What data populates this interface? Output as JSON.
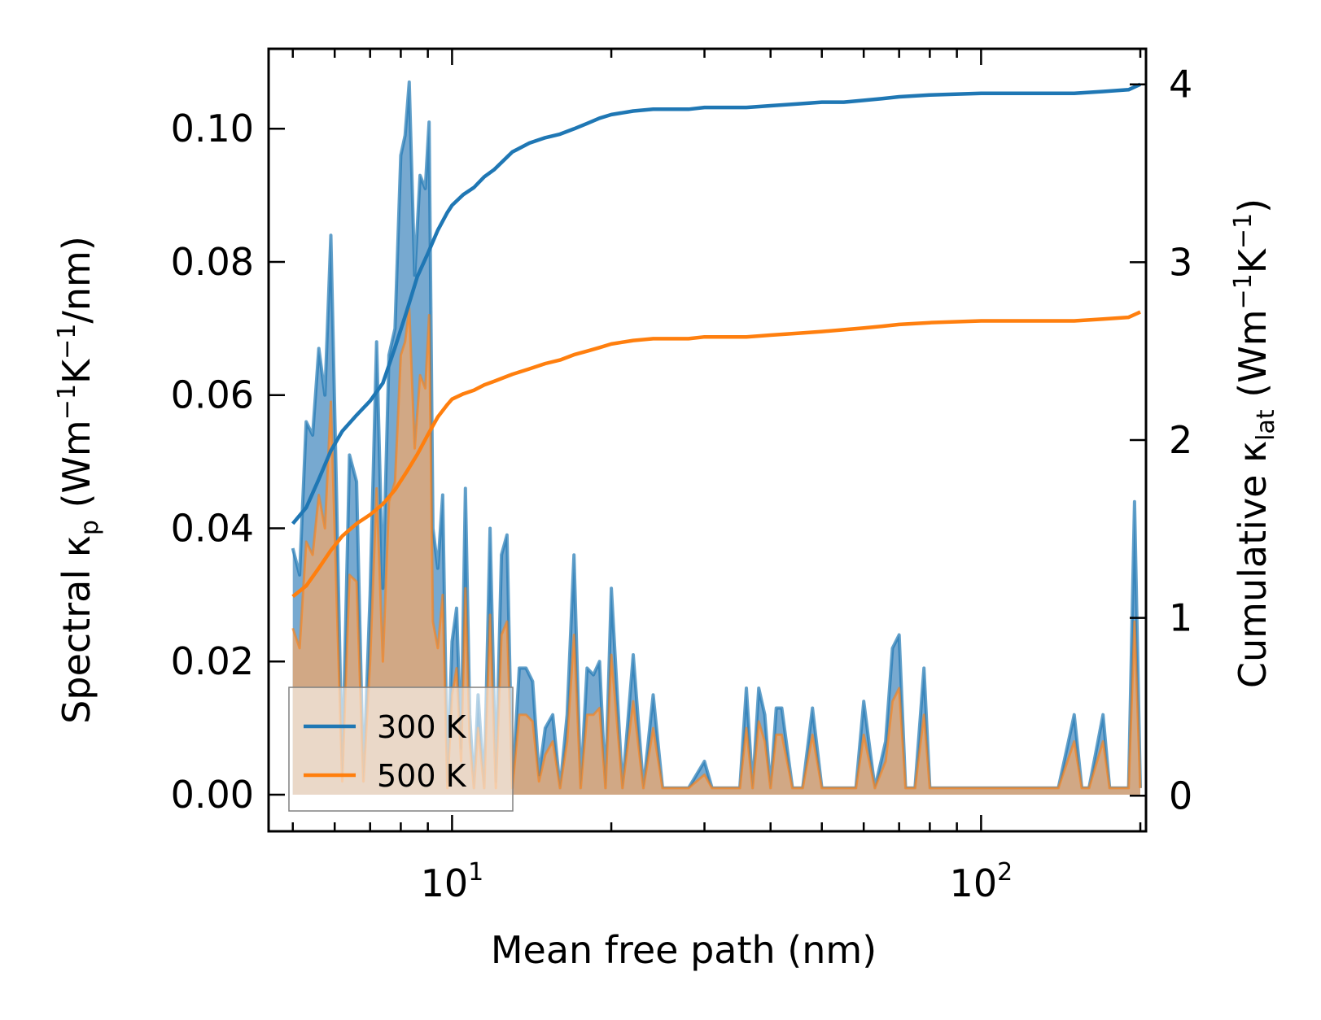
{
  "chart_data": {
    "type": "line",
    "xscale": "log",
    "xlim": [
      4.5,
      205
    ],
    "ylim_left": [
      -0.0055,
      0.112
    ],
    "ylim_right": [
      -0.2,
      4.2
    ],
    "xlabel": "Mean free path (nm)",
    "ylabel_left": {
      "prefix": "Spectral κ",
      "sub": "p",
      "open": " (Wm",
      "sup1": "−1",
      "mid": "K",
      "sup2": "−1",
      "close": "/nm)"
    },
    "ylabel_right": {
      "prefix": "Cumulative κ",
      "sub": "lat",
      "open": " (Wm",
      "sup1": "−1",
      "mid": "K",
      "sup2": "−1",
      "close": ")"
    },
    "x_major_ticks": [
      {
        "value": 10,
        "base": "10",
        "exp": "1"
      },
      {
        "value": 100,
        "base": "10",
        "exp": "2"
      }
    ],
    "y_left_ticks": [
      {
        "value": 0.0,
        "label": "0.00"
      },
      {
        "value": 0.02,
        "label": "0.02"
      },
      {
        "value": 0.04,
        "label": "0.04"
      },
      {
        "value": 0.06,
        "label": "0.06"
      },
      {
        "value": 0.08,
        "label": "0.08"
      },
      {
        "value": 0.1,
        "label": "0.10"
      }
    ],
    "y_right_ticks": [
      {
        "value": 0,
        "label": "0"
      },
      {
        "value": 1,
        "label": "1"
      },
      {
        "value": 2,
        "label": "2"
      },
      {
        "value": 3,
        "label": "3"
      },
      {
        "value": 4,
        "label": "4"
      }
    ],
    "legend": {
      "position": "lower-left",
      "entries": [
        {
          "label": "300 K",
          "color": "#1f77b4"
        },
        {
          "label": "500 K",
          "color": "#ff7f0e"
        }
      ]
    },
    "colors": {
      "s300_line": "#1f77b4",
      "s300_fill": "#5f9ac8",
      "s500_line": "#ff7f0e",
      "s500_fill": "#e0a878"
    },
    "spectral_300K": {
      "x": [
        5.0,
        5.15,
        5.3,
        5.45,
        5.6,
        5.75,
        5.9,
        6.05,
        6.2,
        6.4,
        6.6,
        6.8,
        7.0,
        7.2,
        7.4,
        7.6,
        7.8,
        8.0,
        8.15,
        8.3,
        8.5,
        8.7,
        8.9,
        9.05,
        9.2,
        9.4,
        9.6,
        9.8,
        10.0,
        10.2,
        10.4,
        10.6,
        10.8,
        11.0,
        11.2,
        11.5,
        11.8,
        12.1,
        12.4,
        12.7,
        13.0,
        13.4,
        13.8,
        14.2,
        14.6,
        15.0,
        15.5,
        16.0,
        16.5,
        17.0,
        17.5,
        18.0,
        18.5,
        19.0,
        19.5,
        20.0,
        21.0,
        22.0,
        23.0,
        24.0,
        25.0,
        26.0,
        28.0,
        30.0,
        31.0,
        33.0,
        35.0,
        36.0,
        37.0,
        38.0,
        39.0,
        40.0,
        41.0,
        42.0,
        44.0,
        46.0,
        48.0,
        50.0,
        52.0,
        54.0,
        56.0,
        58.0,
        60.0,
        63.0,
        66.0,
        68.0,
        70.0,
        72.0,
        75.0,
        78.0,
        80.0,
        85.0,
        90.0,
        100.0,
        120.0,
        140.0,
        150.0,
        155.0,
        160.0,
        170.0,
        175.0,
        180.0,
        190.0,
        195.0,
        200.0
      ],
      "y": [
        0.037,
        0.033,
        0.056,
        0.054,
        0.067,
        0.06,
        0.084,
        0.045,
        0.003,
        0.051,
        0.047,
        0.002,
        0.03,
        0.068,
        0.031,
        0.066,
        0.07,
        0.096,
        0.099,
        0.107,
        0.078,
        0.093,
        0.091,
        0.101,
        0.04,
        0.034,
        0.045,
        0.002,
        0.023,
        0.028,
        0.007,
        0.046,
        0.012,
        0.001,
        0.015,
        0.001,
        0.04,
        0.002,
        0.036,
        0.039,
        0.001,
        0.019,
        0.019,
        0.017,
        0.003,
        0.01,
        0.012,
        0.001,
        0.012,
        0.036,
        0.001,
        0.019,
        0.018,
        0.02,
        0.001,
        0.031,
        0.001,
        0.021,
        0.001,
        0.015,
        0.001,
        0.001,
        0.001,
        0.005,
        0.001,
        0.001,
        0.001,
        0.016,
        0.001,
        0.016,
        0.012,
        0.001,
        0.013,
        0.013,
        0.001,
        0.001,
        0.013,
        0.001,
        0.001,
        0.001,
        0.001,
        0.001,
        0.014,
        0.001,
        0.008,
        0.022,
        0.024,
        0.001,
        0.001,
        0.019,
        0.001,
        0.001,
        0.001,
        0.001,
        0.001,
        0.001,
        0.012,
        0.001,
        0.001,
        0.012,
        0.001,
        0.001,
        0.001,
        0.044,
        0.001
      ]
    },
    "spectral_500K": {
      "x": [
        5.0,
        5.15,
        5.3,
        5.45,
        5.6,
        5.75,
        5.9,
        6.05,
        6.2,
        6.4,
        6.6,
        6.8,
        7.0,
        7.2,
        7.4,
        7.6,
        7.8,
        8.0,
        8.15,
        8.3,
        8.5,
        8.7,
        8.9,
        9.05,
        9.2,
        9.4,
        9.6,
        9.8,
        10.0,
        10.2,
        10.4,
        10.6,
        10.8,
        11.0,
        11.2,
        11.5,
        11.8,
        12.1,
        12.4,
        12.7,
        13.0,
        13.4,
        13.8,
        14.2,
        14.6,
        15.0,
        15.5,
        16.0,
        16.5,
        17.0,
        17.5,
        18.0,
        18.5,
        19.0,
        19.5,
        20.0,
        21.0,
        22.0,
        23.0,
        24.0,
        25.0,
        26.0,
        28.0,
        30.0,
        31.0,
        33.0,
        35.0,
        36.0,
        37.0,
        38.0,
        39.0,
        40.0,
        41.0,
        42.0,
        44.0,
        46.0,
        48.0,
        50.0,
        52.0,
        54.0,
        56.0,
        58.0,
        60.0,
        63.0,
        66.0,
        68.0,
        70.0,
        72.0,
        75.0,
        78.0,
        80.0,
        85.0,
        90.0,
        100.0,
        120.0,
        140.0,
        150.0,
        155.0,
        160.0,
        170.0,
        175.0,
        180.0,
        190.0,
        195.0,
        200.0
      ],
      "y": [
        0.025,
        0.022,
        0.038,
        0.036,
        0.045,
        0.04,
        0.059,
        0.03,
        0.002,
        0.033,
        0.032,
        0.002,
        0.02,
        0.046,
        0.02,
        0.044,
        0.047,
        0.066,
        0.068,
        0.073,
        0.052,
        0.063,
        0.061,
        0.072,
        0.026,
        0.022,
        0.03,
        0.001,
        0.015,
        0.019,
        0.005,
        0.031,
        0.008,
        0.001,
        0.01,
        0.001,
        0.027,
        0.001,
        0.024,
        0.026,
        0.001,
        0.012,
        0.012,
        0.011,
        0.002,
        0.006,
        0.008,
        0.001,
        0.008,
        0.024,
        0.001,
        0.012,
        0.012,
        0.013,
        0.001,
        0.021,
        0.001,
        0.014,
        0.001,
        0.01,
        0.001,
        0.001,
        0.001,
        0.003,
        0.001,
        0.001,
        0.001,
        0.01,
        0.001,
        0.011,
        0.008,
        0.001,
        0.009,
        0.009,
        0.001,
        0.001,
        0.009,
        0.001,
        0.001,
        0.001,
        0.001,
        0.001,
        0.009,
        0.001,
        0.005,
        0.014,
        0.016,
        0.001,
        0.001,
        0.012,
        0.001,
        0.001,
        0.001,
        0.001,
        0.001,
        0.001,
        0.008,
        0.001,
        0.001,
        0.008,
        0.001,
        0.001,
        0.001,
        0.026,
        0.001
      ]
    },
    "cumulative_300K": {
      "x": [
        5.0,
        5.3,
        5.6,
        5.9,
        6.2,
        6.6,
        7.0,
        7.4,
        7.8,
        8.2,
        8.6,
        9.0,
        9.4,
        9.8,
        10.0,
        10.5,
        11.0,
        11.5,
        12.0,
        13.0,
        14.0,
        15.0,
        16.0,
        17.0,
        18.0,
        19.0,
        20.0,
        22.0,
        24.0,
        26.0,
        28.0,
        30.0,
        33.0,
        36.0,
        40.0,
        45.0,
        50.0,
        55.0,
        60.0,
        65.0,
        70.0,
        80.0,
        100.0,
        130.0,
        150.0,
        170.0,
        190.0,
        200.0
      ],
      "y": [
        1.53,
        1.62,
        1.78,
        1.94,
        2.05,
        2.14,
        2.22,
        2.32,
        2.52,
        2.72,
        2.92,
        3.05,
        3.18,
        3.28,
        3.32,
        3.38,
        3.42,
        3.48,
        3.52,
        3.62,
        3.67,
        3.7,
        3.72,
        3.75,
        3.78,
        3.81,
        3.83,
        3.85,
        3.86,
        3.86,
        3.86,
        3.87,
        3.87,
        3.87,
        3.88,
        3.89,
        3.9,
        3.9,
        3.91,
        3.92,
        3.93,
        3.94,
        3.95,
        3.95,
        3.95,
        3.96,
        3.97,
        4.0
      ]
    },
    "cumulative_500K": {
      "x": [
        5.0,
        5.3,
        5.6,
        5.9,
        6.2,
        6.6,
        7.0,
        7.4,
        7.8,
        8.2,
        8.6,
        9.0,
        9.4,
        9.8,
        10.0,
        10.5,
        11.0,
        11.5,
        12.0,
        13.0,
        14.0,
        15.0,
        16.0,
        17.0,
        18.0,
        19.0,
        20.0,
        22.0,
        24.0,
        26.0,
        28.0,
        30.0,
        33.0,
        36.0,
        40.0,
        45.0,
        50.0,
        55.0,
        60.0,
        65.0,
        70.0,
        80.0,
        100.0,
        130.0,
        150.0,
        170.0,
        190.0,
        200.0
      ],
      "y": [
        1.12,
        1.18,
        1.28,
        1.38,
        1.46,
        1.53,
        1.58,
        1.64,
        1.72,
        1.82,
        1.92,
        2.03,
        2.13,
        2.2,
        2.23,
        2.26,
        2.28,
        2.31,
        2.33,
        2.37,
        2.4,
        2.43,
        2.45,
        2.48,
        2.5,
        2.52,
        2.54,
        2.56,
        2.57,
        2.57,
        2.57,
        2.58,
        2.58,
        2.58,
        2.59,
        2.6,
        2.61,
        2.62,
        2.63,
        2.64,
        2.65,
        2.66,
        2.67,
        2.67,
        2.67,
        2.68,
        2.69,
        2.72
      ]
    }
  }
}
